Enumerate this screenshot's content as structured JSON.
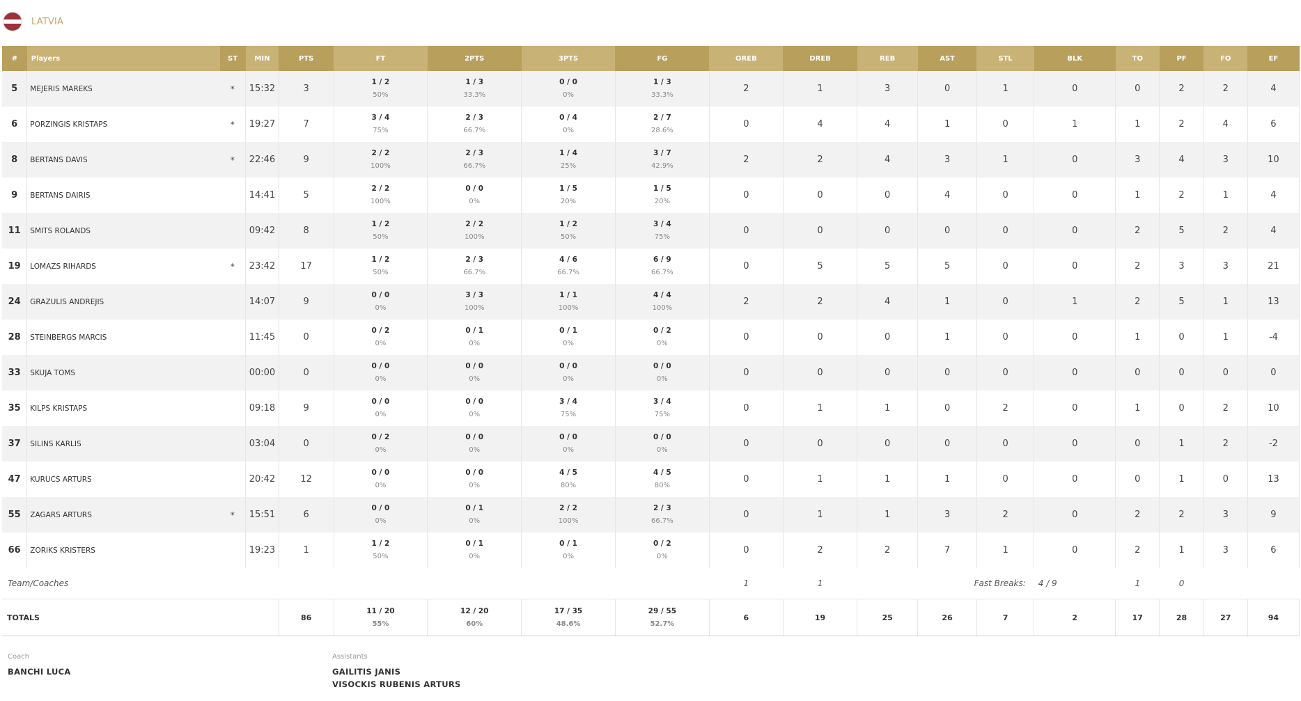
{
  "team": {
    "name": "LATVIA",
    "flag_colors": [
      "#9e3039",
      "#ffffff",
      "#9e3039"
    ]
  },
  "header": {
    "columns": [
      "#",
      "Players",
      "ST",
      "MIN",
      "PTS",
      "FT",
      "2PTS",
      "3PTS",
      "FG",
      "OREB",
      "DREB",
      "REB",
      "AST",
      "STL",
      "BLK",
      "TO",
      "PF",
      "FO",
      "EF"
    ],
    "colors": {
      "odd": "#b89f5c",
      "even": "#c9b275"
    }
  },
  "players": [
    {
      "num": "5",
      "name": "MEJERIS MAREKS",
      "st": "*",
      "min": "15:32",
      "pts": "3",
      "ft": "1 / 2",
      "ft_pct": "50%",
      "p2": "1 / 3",
      "p2_pct": "33.3%",
      "p3": "0 / 0",
      "p3_pct": "0%",
      "fg": "1 / 3",
      "fg_pct": "33.3%",
      "oreb": "2",
      "dreb": "1",
      "reb": "3",
      "ast": "0",
      "stl": "1",
      "blk": "0",
      "to": "0",
      "pf": "2",
      "fo": "2",
      "ef": "4"
    },
    {
      "num": "6",
      "name": "PORZINGIS KRISTAPS",
      "st": "*",
      "min": "19:27",
      "pts": "7",
      "ft": "3 / 4",
      "ft_pct": "75%",
      "p2": "2 / 3",
      "p2_pct": "66.7%",
      "p3": "0 / 4",
      "p3_pct": "0%",
      "fg": "2 / 7",
      "fg_pct": "28.6%",
      "oreb": "0",
      "dreb": "4",
      "reb": "4",
      "ast": "1",
      "stl": "0",
      "blk": "1",
      "to": "1",
      "pf": "2",
      "fo": "4",
      "ef": "6"
    },
    {
      "num": "8",
      "name": "BERTANS DAVIS",
      "st": "*",
      "min": "22:46",
      "pts": "9",
      "ft": "2 / 2",
      "ft_pct": "100%",
      "p2": "2 / 3",
      "p2_pct": "66.7%",
      "p3": "1 / 4",
      "p3_pct": "25%",
      "fg": "3 / 7",
      "fg_pct": "42.9%",
      "oreb": "2",
      "dreb": "2",
      "reb": "4",
      "ast": "3",
      "stl": "1",
      "blk": "0",
      "to": "3",
      "pf": "4",
      "fo": "3",
      "ef": "10"
    },
    {
      "num": "9",
      "name": "BERTANS DAIRIS",
      "st": "",
      "min": "14:41",
      "pts": "5",
      "ft": "2 / 2",
      "ft_pct": "100%",
      "p2": "0 / 0",
      "p2_pct": "0%",
      "p3": "1 / 5",
      "p3_pct": "20%",
      "fg": "1 / 5",
      "fg_pct": "20%",
      "oreb": "0",
      "dreb": "0",
      "reb": "0",
      "ast": "4",
      "stl": "0",
      "blk": "0",
      "to": "1",
      "pf": "2",
      "fo": "1",
      "ef": "4"
    },
    {
      "num": "11",
      "name": "SMITS ROLANDS",
      "st": "",
      "min": "09:42",
      "pts": "8",
      "ft": "1 / 2",
      "ft_pct": "50%",
      "p2": "2 / 2",
      "p2_pct": "100%",
      "p3": "1 / 2",
      "p3_pct": "50%",
      "fg": "3 / 4",
      "fg_pct": "75%",
      "oreb": "0",
      "dreb": "0",
      "reb": "0",
      "ast": "0",
      "stl": "0",
      "blk": "0",
      "to": "2",
      "pf": "5",
      "fo": "2",
      "ef": "4"
    },
    {
      "num": "19",
      "name": "LOMAZS RIHARDS",
      "st": "*",
      "min": "23:42",
      "pts": "17",
      "ft": "1 / 2",
      "ft_pct": "50%",
      "p2": "2 / 3",
      "p2_pct": "66.7%",
      "p3": "4 / 6",
      "p3_pct": "66.7%",
      "fg": "6 / 9",
      "fg_pct": "66.7%",
      "oreb": "0",
      "dreb": "5",
      "reb": "5",
      "ast": "5",
      "stl": "0",
      "blk": "0",
      "to": "2",
      "pf": "3",
      "fo": "3",
      "ef": "21"
    },
    {
      "num": "24",
      "name": "GRAZULIS ANDREJIS",
      "st": "",
      "min": "14:07",
      "pts": "9",
      "ft": "0 / 0",
      "ft_pct": "0%",
      "p2": "3 / 3",
      "p2_pct": "100%",
      "p3": "1 / 1",
      "p3_pct": "100%",
      "fg": "4 / 4",
      "fg_pct": "100%",
      "oreb": "2",
      "dreb": "2",
      "reb": "4",
      "ast": "1",
      "stl": "0",
      "blk": "1",
      "to": "2",
      "pf": "5",
      "fo": "1",
      "ef": "13"
    },
    {
      "num": "28",
      "name": "STEINBERGS MARCIS",
      "st": "",
      "min": "11:45",
      "pts": "0",
      "ft": "0 / 2",
      "ft_pct": "0%",
      "p2": "0 / 1",
      "p2_pct": "0%",
      "p3": "0 / 1",
      "p3_pct": "0%",
      "fg": "0 / 2",
      "fg_pct": "0%",
      "oreb": "0",
      "dreb": "0",
      "reb": "0",
      "ast": "1",
      "stl": "0",
      "blk": "0",
      "to": "1",
      "pf": "0",
      "fo": "1",
      "ef": "-4"
    },
    {
      "num": "33",
      "name": "SKUJA TOMS",
      "st": "",
      "min": "00:00",
      "pts": "0",
      "ft": "0 / 0",
      "ft_pct": "0%",
      "p2": "0 / 0",
      "p2_pct": "0%",
      "p3": "0 / 0",
      "p3_pct": "0%",
      "fg": "0 / 0",
      "fg_pct": "0%",
      "oreb": "0",
      "dreb": "0",
      "reb": "0",
      "ast": "0",
      "stl": "0",
      "blk": "0",
      "to": "0",
      "pf": "0",
      "fo": "0",
      "ef": "0"
    },
    {
      "num": "35",
      "name": "KILPS KRISTAPS",
      "st": "",
      "min": "09:18",
      "pts": "9",
      "ft": "0 / 0",
      "ft_pct": "0%",
      "p2": "0 / 0",
      "p2_pct": "0%",
      "p3": "3 / 4",
      "p3_pct": "75%",
      "fg": "3 / 4",
      "fg_pct": "75%",
      "oreb": "0",
      "dreb": "1",
      "reb": "1",
      "ast": "0",
      "stl": "2",
      "blk": "0",
      "to": "1",
      "pf": "0",
      "fo": "2",
      "ef": "10"
    },
    {
      "num": "37",
      "name": "SILINS KARLIS",
      "st": "",
      "min": "03:04",
      "pts": "0",
      "ft": "0 / 2",
      "ft_pct": "0%",
      "p2": "0 / 0",
      "p2_pct": "0%",
      "p3": "0 / 0",
      "p3_pct": "0%",
      "fg": "0 / 0",
      "fg_pct": "0%",
      "oreb": "0",
      "dreb": "0",
      "reb": "0",
      "ast": "0",
      "stl": "0",
      "blk": "0",
      "to": "0",
      "pf": "1",
      "fo": "2",
      "ef": "-2"
    },
    {
      "num": "47",
      "name": "KURUCS ARTURS",
      "st": "",
      "min": "20:42",
      "pts": "12",
      "ft": "0 / 0",
      "ft_pct": "0%",
      "p2": "0 / 0",
      "p2_pct": "0%",
      "p3": "4 / 5",
      "p3_pct": "80%",
      "fg": "4 / 5",
      "fg_pct": "80%",
      "oreb": "0",
      "dreb": "1",
      "reb": "1",
      "ast": "1",
      "stl": "0",
      "blk": "0",
      "to": "0",
      "pf": "1",
      "fo": "0",
      "ef": "13"
    },
    {
      "num": "55",
      "name": "ZAGARS ARTURS",
      "st": "*",
      "min": "15:51",
      "pts": "6",
      "ft": "0 / 0",
      "ft_pct": "0%",
      "p2": "0 / 1",
      "p2_pct": "0%",
      "p3": "2 / 2",
      "p3_pct": "100%",
      "fg": "2 / 3",
      "fg_pct": "66.7%",
      "oreb": "0",
      "dreb": "1",
      "reb": "1",
      "ast": "3",
      "stl": "2",
      "blk": "0",
      "to": "2",
      "pf": "2",
      "fo": "3",
      "ef": "9"
    },
    {
      "num": "66",
      "name": "ZORIKS KRISTERS",
      "st": "",
      "min": "19:23",
      "pts": "1",
      "ft": "1 / 2",
      "ft_pct": "50%",
      "p2": "0 / 1",
      "p2_pct": "0%",
      "p3": "0 / 1",
      "p3_pct": "0%",
      "fg": "0 / 2",
      "fg_pct": "0%",
      "oreb": "0",
      "dreb": "2",
      "reb": "2",
      "ast": "7",
      "stl": "1",
      "blk": "0",
      "to": "2",
      "pf": "1",
      "fo": "3",
      "ef": "6"
    }
  ],
  "team_row": {
    "label": "Team/Coaches",
    "oreb": "1",
    "dreb": "1",
    "fast_breaks_label": "Fast Breaks:",
    "fast_breaks_value": "4 / 9",
    "to": "1",
    "pf": "0"
  },
  "totals": {
    "label": "TOTALS",
    "pts": "86",
    "ft": "11 / 20",
    "ft_pct": "55%",
    "p2": "12 / 20",
    "p2_pct": "60%",
    "p3": "17 / 35",
    "p3_pct": "48.6%",
    "fg": "29 / 55",
    "fg_pct": "52.7%",
    "oreb": "6",
    "dreb": "19",
    "reb": "25",
    "ast": "26",
    "stl": "7",
    "blk": "2",
    "to": "17",
    "pf": "28",
    "fo": "27",
    "ef": "94"
  },
  "staff": {
    "coach_label": "Coach",
    "coach": "BANCHI LUCA",
    "assistants_label": "Assistants",
    "assistants": [
      "GAILITIS JANIS",
      "VISOCKIS RUBENIS ARTURS"
    ]
  }
}
